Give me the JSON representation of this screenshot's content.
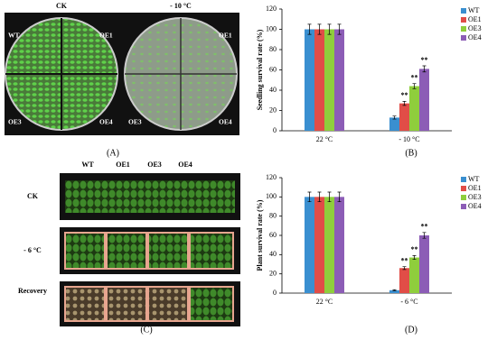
{
  "photo_a": {
    "columns": [
      "CK",
      "- 10 °C"
    ],
    "plate_labels": [
      "WT",
      "OE1",
      "OE3",
      "OE4"
    ],
    "panel_label": "(A)"
  },
  "photo_c": {
    "columns": [
      "WT",
      "OE1",
      "OE3",
      "OE4"
    ],
    "rows": [
      "CK",
      "- 6 °C",
      "Recovery"
    ],
    "panel_label": "(C)"
  },
  "chart_data": [
    {
      "type": "bar",
      "panel_label": "(B)",
      "y_label": "Seedling survival rate (%)",
      "categories": [
        "22 °C",
        "- 10 °C"
      ],
      "series": [
        {
          "name": "WT",
          "color": "#3a8fd0",
          "values": [
            100,
            13
          ],
          "errors": [
            5,
            1.5
          ],
          "significance": [
            null,
            null
          ]
        },
        {
          "name": "OE1",
          "color": "#e14d47",
          "values": [
            100,
            27
          ],
          "errors": [
            5,
            2
          ],
          "significance": [
            null,
            "**"
          ]
        },
        {
          "name": "OE3",
          "color": "#8fce3c",
          "values": [
            100,
            44
          ],
          "errors": [
            5,
            2.5
          ],
          "significance": [
            null,
            "**"
          ]
        },
        {
          "name": "OE4",
          "color": "#8c5db6",
          "values": [
            100,
            61
          ],
          "errors": [
            5,
            3
          ],
          "significance": [
            null,
            "**"
          ]
        }
      ],
      "ylim": [
        0,
        120
      ],
      "yticks": [
        0,
        20,
        40,
        60,
        80,
        100,
        120
      ],
      "legend": "top-right"
    },
    {
      "type": "bar",
      "panel_label": "(D)",
      "y_label": "Plant survival rate (%)",
      "categories": [
        "22 °C",
        "- 6 °C"
      ],
      "series": [
        {
          "name": "WT",
          "color": "#3a8fd0",
          "values": [
            100,
            3
          ],
          "errors": [
            5,
            0.5
          ],
          "significance": [
            null,
            null
          ]
        },
        {
          "name": "OE1",
          "color": "#e14d47",
          "values": [
            100,
            26
          ],
          "errors": [
            5,
            1.5
          ],
          "significance": [
            null,
            "**"
          ]
        },
        {
          "name": "OE3",
          "color": "#8fce3c",
          "values": [
            100,
            37
          ],
          "errors": [
            5,
            2
          ],
          "significance": [
            null,
            "**"
          ]
        },
        {
          "name": "OE4",
          "color": "#8c5db6",
          "values": [
            100,
            60
          ],
          "errors": [
            5,
            3
          ],
          "significance": [
            null,
            "**"
          ]
        }
      ],
      "ylim": [
        0,
        120
      ],
      "yticks": [
        0,
        20,
        40,
        60,
        80,
        100,
        120
      ],
      "legend": "top-right"
    }
  ]
}
